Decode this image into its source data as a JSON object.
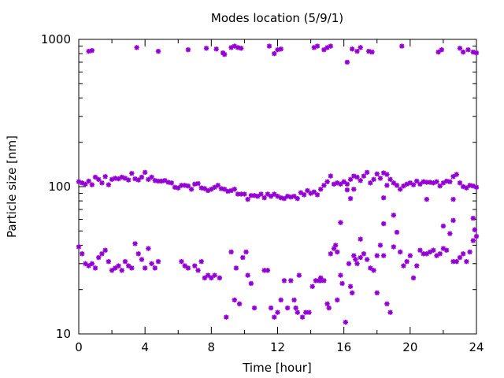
{
  "chart_data": {
    "type": "scatter",
    "title": "Modes location (5/9/1)",
    "xlabel": "Time [hour]",
    "ylabel": "Particle size [nm]",
    "xlim": [
      0,
      24
    ],
    "ylim": [
      10,
      1000
    ],
    "yscale": "log",
    "xticks": [
      "0",
      "4",
      "8",
      "12",
      "16",
      "20",
      "24"
    ],
    "yticks": [
      "10",
      "100",
      "1000"
    ],
    "grid": false,
    "legend": "none",
    "marker_color": "#9400d3",
    "series": [
      {
        "values": [
          [
            0.6,
            830
          ],
          [
            0.8,
            840
          ],
          [
            3.5,
            880
          ],
          [
            4.8,
            830
          ],
          [
            6.6,
            850
          ],
          [
            7.7,
            870
          ],
          [
            8.3,
            860
          ],
          [
            8.7,
            810
          ],
          [
            8.8,
            790
          ],
          [
            9.2,
            880
          ],
          [
            9.4,
            900
          ],
          [
            9.6,
            880
          ],
          [
            9.8,
            870
          ],
          [
            11.5,
            900
          ],
          [
            11.8,
            800
          ],
          [
            12.0,
            850
          ],
          [
            12.2,
            860
          ],
          [
            14.2,
            880
          ],
          [
            14.4,
            900
          ],
          [
            14.8,
            850
          ],
          [
            15.0,
            880
          ],
          [
            15.2,
            900
          ],
          [
            16.2,
            700
          ],
          [
            16.5,
            860
          ],
          [
            16.8,
            830
          ],
          [
            17.0,
            880
          ],
          [
            17.5,
            830
          ],
          [
            17.7,
            820
          ],
          [
            19.5,
            900
          ],
          [
            21.7,
            820
          ],
          [
            21.9,
            850
          ],
          [
            23.0,
            870
          ],
          [
            23.2,
            820
          ],
          [
            23.5,
            850
          ],
          [
            23.8,
            820
          ],
          [
            24.0,
            810
          ]
        ]
      },
      {
        "values": [
          [
            0.0,
            108
          ],
          [
            0.2,
            106
          ],
          [
            0.4,
            104
          ],
          [
            0.6,
            109
          ],
          [
            0.8,
            103
          ],
          [
            1.0,
            116
          ],
          [
            1.2,
            112
          ],
          [
            1.4,
            106
          ],
          [
            1.6,
            117
          ],
          [
            1.8,
            103
          ],
          [
            2.0,
            112
          ],
          [
            2.2,
            114
          ],
          [
            2.4,
            113
          ],
          [
            2.6,
            116
          ],
          [
            2.8,
            114
          ],
          [
            3.0,
            111
          ],
          [
            3.2,
            123
          ],
          [
            3.4,
            113
          ],
          [
            3.6,
            111
          ],
          [
            3.8,
            116
          ],
          [
            4.0,
            125
          ],
          [
            4.2,
            112
          ],
          [
            4.4,
            116
          ],
          [
            4.6,
            110
          ],
          [
            4.8,
            109
          ],
          [
            5.0,
            109
          ],
          [
            5.2,
            110
          ],
          [
            5.4,
            107
          ],
          [
            5.6,
            106
          ],
          [
            5.8,
            99
          ],
          [
            6.0,
            98
          ],
          [
            6.2,
            102
          ],
          [
            6.4,
            102
          ],
          [
            6.6,
            101
          ],
          [
            6.8,
            96
          ],
          [
            7.0,
            104
          ],
          [
            7.2,
            105
          ],
          [
            7.4,
            98
          ],
          [
            7.6,
            97
          ],
          [
            7.8,
            94
          ],
          [
            8.0,
            96
          ],
          [
            8.2,
            99
          ],
          [
            8.4,
            102
          ],
          [
            8.6,
            97
          ],
          [
            8.8,
            96
          ],
          [
            9.0,
            93
          ],
          [
            9.2,
            94
          ],
          [
            9.4,
            96
          ],
          [
            9.6,
            89
          ],
          [
            9.8,
            89
          ],
          [
            10.0,
            89
          ],
          [
            10.2,
            82
          ],
          [
            10.4,
            87
          ],
          [
            10.6,
            87
          ],
          [
            10.8,
            86
          ],
          [
            11.0,
            89
          ],
          [
            11.2,
            84
          ],
          [
            11.4,
            89
          ],
          [
            11.6,
            86
          ],
          [
            11.8,
            89
          ],
          [
            12.0,
            86
          ],
          [
            12.2,
            84
          ],
          [
            12.4,
            83
          ],
          [
            12.6,
            86
          ],
          [
            12.8,
            85
          ],
          [
            13.0,
            86
          ],
          [
            13.2,
            83
          ],
          [
            13.4,
            91
          ],
          [
            13.6,
            88
          ],
          [
            13.8,
            94
          ],
          [
            14.0,
            90
          ],
          [
            14.2,
            92
          ],
          [
            14.4,
            88
          ],
          [
            14.6,
            96
          ],
          [
            14.8,
            102
          ],
          [
            15.0,
            108
          ],
          [
            15.2,
            118
          ],
          [
            15.4,
            104
          ],
          [
            15.6,
            106
          ],
          [
            15.8,
            104
          ],
          [
            16.0,
            108
          ],
          [
            16.2,
            104
          ],
          [
            16.4,
            112
          ],
          [
            16.6,
            118
          ],
          [
            16.8,
            116
          ],
          [
            17.0,
            110
          ],
          [
            17.2,
            118
          ],
          [
            17.4,
            125
          ],
          [
            17.6,
            106
          ],
          [
            17.8,
            112
          ],
          [
            18.0,
            122
          ],
          [
            18.2,
            114
          ],
          [
            18.4,
            124
          ],
          [
            18.6,
            121
          ],
          [
            18.8,
            112
          ],
          [
            19.0,
            106
          ],
          [
            19.2,
            102
          ],
          [
            19.4,
            96
          ],
          [
            19.6,
            101
          ],
          [
            19.8,
            104
          ],
          [
            20.0,
            106
          ],
          [
            20.2,
            103
          ],
          [
            20.4,
            109
          ],
          [
            20.6,
            104
          ],
          [
            20.8,
            108
          ],
          [
            21.0,
            107
          ],
          [
            21.2,
            107
          ],
          [
            21.4,
            106
          ],
          [
            21.6,
            108
          ],
          [
            21.8,
            101
          ],
          [
            22.0,
            106
          ],
          [
            22.2,
            109
          ],
          [
            22.4,
            108
          ],
          [
            22.6,
            117
          ],
          [
            22.8,
            121
          ],
          [
            23.0,
            106
          ],
          [
            23.2,
            100
          ],
          [
            23.4,
            98
          ],
          [
            23.6,
            102
          ],
          [
            23.8,
            101
          ],
          [
            24.0,
            99
          ],
          [
            16.2,
            95
          ],
          [
            16.4,
            83
          ],
          [
            16.6,
            96
          ],
          [
            18.4,
            84
          ],
          [
            18.6,
            102
          ],
          [
            21.0,
            82
          ],
          [
            22.6,
            82
          ]
        ]
      },
      {
        "values": [
          [
            0.0,
            39
          ],
          [
            0.2,
            35
          ],
          [
            0.4,
            30
          ],
          [
            0.6,
            29
          ],
          [
            0.8,
            30
          ],
          [
            1.0,
            28
          ],
          [
            1.2,
            33
          ],
          [
            1.4,
            35
          ],
          [
            1.6,
            37
          ],
          [
            1.8,
            31
          ],
          [
            2.0,
            27
          ],
          [
            2.2,
            28
          ],
          [
            2.4,
            29
          ],
          [
            2.6,
            27
          ],
          [
            2.8,
            31
          ],
          [
            3.0,
            29
          ],
          [
            3.2,
            28
          ],
          [
            3.4,
            41
          ],
          [
            3.6,
            35
          ],
          [
            3.8,
            32
          ],
          [
            4.0,
            28
          ],
          [
            4.2,
            38
          ],
          [
            4.4,
            30
          ],
          [
            4.6,
            28
          ],
          [
            4.8,
            31
          ],
          [
            6.2,
            31
          ],
          [
            6.4,
            29
          ],
          [
            6.6,
            28
          ],
          [
            7.0,
            29
          ],
          [
            7.2,
            27
          ],
          [
            7.4,
            31
          ],
          [
            7.6,
            24
          ],
          [
            7.8,
            25
          ],
          [
            8.0,
            24
          ],
          [
            8.2,
            25
          ],
          [
            8.5,
            24
          ],
          [
            8.9,
            13
          ],
          [
            9.2,
            36
          ],
          [
            9.4,
            17
          ],
          [
            9.5,
            28
          ],
          [
            9.7,
            16
          ],
          [
            9.9,
            33
          ],
          [
            10.1,
            36
          ],
          [
            10.2,
            25
          ],
          [
            10.4,
            22
          ],
          [
            10.6,
            15
          ],
          [
            11.2,
            27
          ],
          [
            11.4,
            27
          ],
          [
            11.6,
            15
          ],
          [
            11.8,
            13
          ],
          [
            12.0,
            14
          ],
          [
            12.2,
            17
          ],
          [
            12.4,
            23
          ],
          [
            12.6,
            15
          ],
          [
            12.8,
            23
          ],
          [
            13.0,
            17
          ],
          [
            13.1,
            15
          ],
          [
            13.2,
            14
          ],
          [
            13.3,
            25
          ],
          [
            13.5,
            13
          ],
          [
            13.7,
            14
          ],
          [
            13.9,
            14
          ],
          [
            14.1,
            21
          ],
          [
            14.3,
            23
          ],
          [
            14.5,
            23
          ],
          [
            14.6,
            24
          ],
          [
            14.8,
            23
          ],
          [
            15.0,
            16
          ],
          [
            15.1,
            15
          ],
          [
            15.2,
            35
          ],
          [
            15.4,
            38
          ],
          [
            15.5,
            40
          ],
          [
            15.6,
            36
          ],
          [
            15.8,
            25
          ],
          [
            15.9,
            22
          ],
          [
            16.1,
            12
          ],
          [
            16.3,
            30
          ],
          [
            16.4,
            21
          ],
          [
            16.5,
            19
          ],
          [
            16.6,
            34
          ],
          [
            16.7,
            32
          ],
          [
            16.8,
            30
          ],
          [
            17.0,
            33
          ],
          [
            17.2,
            35
          ],
          [
            17.4,
            32
          ],
          [
            17.6,
            28
          ],
          [
            17.8,
            27
          ],
          [
            18.0,
            34
          ],
          [
            18.2,
            40
          ],
          [
            18.4,
            34
          ],
          [
            18.6,
            16
          ],
          [
            18.8,
            14
          ],
          [
            19.0,
            39
          ],
          [
            19.2,
            49
          ],
          [
            19.4,
            36
          ],
          [
            19.6,
            29
          ],
          [
            19.8,
            31
          ],
          [
            20.0,
            34
          ],
          [
            20.2,
            24
          ],
          [
            20.4,
            29
          ],
          [
            20.6,
            37
          ],
          [
            20.8,
            35
          ],
          [
            21.0,
            35
          ],
          [
            21.2,
            36
          ],
          [
            21.4,
            37
          ],
          [
            21.6,
            34
          ],
          [
            21.8,
            35
          ],
          [
            22.0,
            38
          ],
          [
            22.2,
            37
          ],
          [
            22.4,
            48
          ],
          [
            22.6,
            31
          ],
          [
            22.8,
            31
          ],
          [
            23.0,
            33
          ],
          [
            23.2,
            35
          ],
          [
            23.4,
            31
          ],
          [
            23.6,
            36
          ],
          [
            23.8,
            43
          ],
          [
            24.0,
            46
          ],
          [
            15.8,
            57
          ],
          [
            18.4,
            56
          ],
          [
            19.0,
            64
          ],
          [
            22.0,
            54
          ],
          [
            22.6,
            59
          ],
          [
            23.8,
            61
          ],
          [
            23.9,
            51
          ],
          [
            14.6,
            23
          ],
          [
            15.6,
            17
          ],
          [
            17.0,
            44
          ],
          [
            18.0,
            19
          ]
        ]
      }
    ]
  }
}
